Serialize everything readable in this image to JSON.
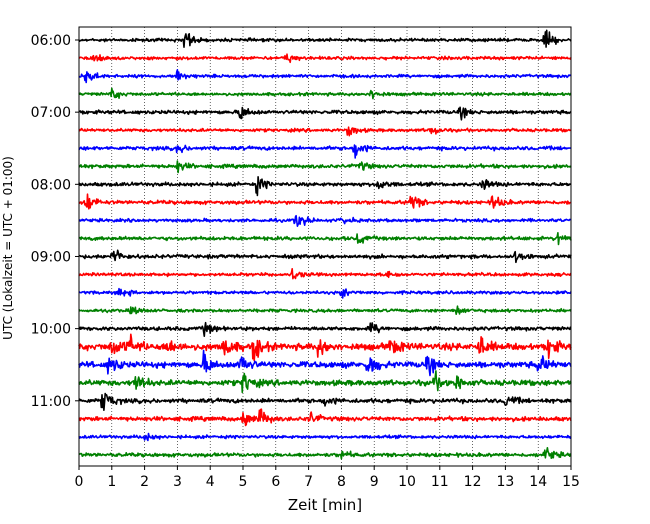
{
  "chart_data": {
    "type": "line",
    "title": "",
    "xlabel": "Zeit  [min]",
    "ylabel": "UTC (Lokalzeit = UTC + 01:00)",
    "xlim": [
      0,
      15
    ],
    "x_ticks": [
      "0",
      "1",
      "2",
      "3",
      "4",
      "5",
      "6",
      "7",
      "8",
      "9",
      "10",
      "11",
      "12",
      "13",
      "14",
      "15"
    ],
    "grid": {
      "vertical": true,
      "style": "dotted"
    },
    "y_tick_labels": [
      {
        "label": "06:00",
        "row": 0
      },
      {
        "label": "07:00",
        "row": 4
      },
      {
        "label": "08:00",
        "row": 8
      },
      {
        "label": "09:00",
        "row": 12
      },
      {
        "label": "10:00",
        "row": 16
      },
      {
        "label": "11:00",
        "row": 20
      }
    ],
    "row_interval_minutes": 15,
    "colors": [
      "#000000",
      "#ff0000",
      "#0000ff",
      "#008000"
    ],
    "traces": [
      {
        "start": "06:00",
        "color": "#000000",
        "amplitude": 0.25,
        "events": [
          {
            "t": 3.2,
            "a": 1.0
          },
          {
            "t": 14.2,
            "a": 0.9
          }
        ]
      },
      {
        "start": "06:15",
        "color": "#ff0000",
        "amplitude": 0.25,
        "events": [
          {
            "t": 0.4,
            "a": 0.6
          },
          {
            "t": 6.3,
            "a": 0.5
          }
        ]
      },
      {
        "start": "06:30",
        "color": "#0000ff",
        "amplitude": 0.25,
        "events": [
          {
            "t": 0.2,
            "a": 0.8
          },
          {
            "t": 3.0,
            "a": 0.5
          }
        ]
      },
      {
        "start": "06:45",
        "color": "#008000",
        "amplitude": 0.25,
        "events": [
          {
            "t": 1.0,
            "a": 0.5
          },
          {
            "t": 8.9,
            "a": 0.4
          }
        ]
      },
      {
        "start": "07:00",
        "color": "#000000",
        "amplitude": 0.3,
        "events": [
          {
            "t": 4.9,
            "a": 0.8
          },
          {
            "t": 11.6,
            "a": 0.5
          }
        ]
      },
      {
        "start": "07:15",
        "color": "#ff0000",
        "amplitude": 0.25,
        "events": [
          {
            "t": 8.2,
            "a": 0.6
          },
          {
            "t": 10.7,
            "a": 0.5
          }
        ]
      },
      {
        "start": "07:30",
        "color": "#0000ff",
        "amplitude": 0.3,
        "events": [
          {
            "t": 8.4,
            "a": 1.0
          },
          {
            "t": 3.0,
            "a": 0.4
          }
        ]
      },
      {
        "start": "07:45",
        "color": "#008000",
        "amplitude": 0.3,
        "events": [
          {
            "t": 3.0,
            "a": 0.5
          },
          {
            "t": 8.5,
            "a": 0.5
          }
        ]
      },
      {
        "start": "08:00",
        "color": "#000000",
        "amplitude": 0.3,
        "events": [
          {
            "t": 5.4,
            "a": 0.8
          },
          {
            "t": 9.1,
            "a": 0.6
          },
          {
            "t": 12.3,
            "a": 0.5
          }
        ]
      },
      {
        "start": "08:15",
        "color": "#ff0000",
        "amplitude": 0.3,
        "events": [
          {
            "t": 0.2,
            "a": 1.0
          },
          {
            "t": 10.1,
            "a": 0.9
          },
          {
            "t": 12.6,
            "a": 0.7
          }
        ]
      },
      {
        "start": "08:30",
        "color": "#0000ff",
        "amplitude": 0.25,
        "events": [
          {
            "t": 6.6,
            "a": 0.9
          },
          {
            "t": 8.0,
            "a": 0.4
          }
        ]
      },
      {
        "start": "08:45",
        "color": "#008000",
        "amplitude": 0.3,
        "events": [
          {
            "t": 8.5,
            "a": 0.5
          },
          {
            "t": 14.6,
            "a": 0.6
          }
        ]
      },
      {
        "start": "09:00",
        "color": "#000000",
        "amplitude": 0.3,
        "events": [
          {
            "t": 1.0,
            "a": 0.9
          },
          {
            "t": 13.3,
            "a": 0.5
          }
        ]
      },
      {
        "start": "09:15",
        "color": "#ff0000",
        "amplitude": 0.25,
        "events": [
          {
            "t": 6.5,
            "a": 0.5
          },
          {
            "t": 9.4,
            "a": 0.4
          }
        ]
      },
      {
        "start": "09:30",
        "color": "#0000ff",
        "amplitude": 0.25,
        "events": [
          {
            "t": 1.2,
            "a": 0.6
          },
          {
            "t": 8.0,
            "a": 0.4
          }
        ]
      },
      {
        "start": "09:45",
        "color": "#008000",
        "amplitude": 0.25,
        "events": [
          {
            "t": 1.6,
            "a": 0.4
          },
          {
            "t": 11.5,
            "a": 0.4
          }
        ]
      },
      {
        "start": "10:00",
        "color": "#000000",
        "amplitude": 0.3,
        "events": [
          {
            "t": 3.8,
            "a": 0.6
          },
          {
            "t": 8.9,
            "a": 0.5
          }
        ]
      },
      {
        "start": "10:15",
        "color": "#ff0000",
        "amplitude": 0.55,
        "events": [
          {
            "t": 1.0,
            "a": 0.9
          },
          {
            "t": 1.5,
            "a": 1.0
          },
          {
            "t": 2.7,
            "a": 0.8
          },
          {
            "t": 4.4,
            "a": 1.0
          },
          {
            "t": 5.3,
            "a": 1.2
          },
          {
            "t": 7.3,
            "a": 0.9
          },
          {
            "t": 9.5,
            "a": 0.8
          },
          {
            "t": 12.2,
            "a": 1.0
          },
          {
            "t": 14.3,
            "a": 0.9
          }
        ]
      },
      {
        "start": "10:30",
        "color": "#0000ff",
        "amplitude": 0.5,
        "events": [
          {
            "t": 0.9,
            "a": 0.9
          },
          {
            "t": 3.8,
            "a": 0.9
          },
          {
            "t": 4.9,
            "a": 1.0
          },
          {
            "t": 8.8,
            "a": 1.2
          },
          {
            "t": 10.6,
            "a": 0.8
          },
          {
            "t": 14.0,
            "a": 0.9
          }
        ]
      },
      {
        "start": "10:45",
        "color": "#008000",
        "amplitude": 0.45,
        "events": [
          {
            "t": 1.7,
            "a": 0.9
          },
          {
            "t": 5.0,
            "a": 1.1
          },
          {
            "t": 10.8,
            "a": 0.8
          },
          {
            "t": 11.5,
            "a": 0.7
          }
        ]
      },
      {
        "start": "11:00",
        "color": "#000000",
        "amplitude": 0.35,
        "events": [
          {
            "t": 0.7,
            "a": 1.2
          },
          {
            "t": 7.5,
            "a": 0.5
          },
          {
            "t": 13.0,
            "a": 0.6
          }
        ]
      },
      {
        "start": "11:15",
        "color": "#ff0000",
        "amplitude": 0.35,
        "events": [
          {
            "t": 5.0,
            "a": 0.8
          },
          {
            "t": 5.5,
            "a": 0.9
          },
          {
            "t": 7.0,
            "a": 0.6
          }
        ]
      },
      {
        "start": "11:30",
        "color": "#0000ff",
        "amplitude": 0.25,
        "events": [
          {
            "t": 2.0,
            "a": 0.4
          }
        ]
      },
      {
        "start": "11:45",
        "color": "#008000",
        "amplitude": 0.3,
        "events": [
          {
            "t": 14.2,
            "a": 0.7
          },
          {
            "t": 8.0,
            "a": 0.4
          }
        ]
      }
    ]
  }
}
